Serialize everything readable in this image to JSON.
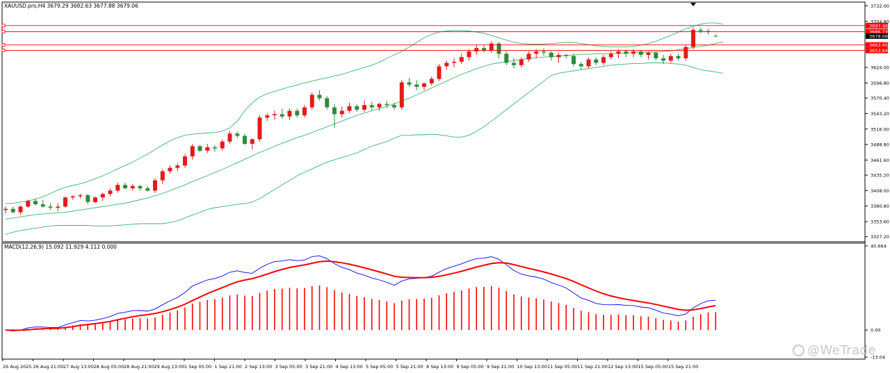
{
  "header": {
    "symbol_info": "XAUUSD.pro,H4  3679.29 3682.63 3677.88 3679.06"
  },
  "chart_data": [
    {
      "type": "candlestick",
      "title": "XAUUSD.pro,H4",
      "ohlc_readout": "3679.29 3682.63 3677.88 3679.06",
      "ylim": [
        3322,
        3735
      ],
      "price_ticks": [
        "3732.00",
        "3704.80",
        "3624.00",
        "3596.80",
        "3570.40",
        "3543.20",
        "3516.00",
        "3488.80",
        "3461.60",
        "3435.20",
        "3408.00",
        "3380.80",
        "3353.60",
        "3327.20"
      ],
      "time_labels": [
        "26 Aug 2025",
        "26 Aug 21:00",
        "27 Aug 13:00",
        "28 Aug 05:00",
        "28 Aug 21:00",
        "29 Aug 13:00",
        "1 Sep 05:00",
        "1 Sep 21:00",
        "2 Sep 13:00",
        "3 Sep 05:00",
        "3 Sep 21:00",
        "4 Sep 13:00",
        "5 Sep 05:00",
        "5 Sep 21:00",
        "8 Sep 13:00",
        "9 Sep 05:00",
        "9 Sep 21:00",
        "10 Sep 13:00",
        "11 Sep 05:00",
        "11 Sep 21:00",
        "12 Sep 13:00",
        "15 Sep 05:00",
        "15 Sep 21:00"
      ],
      "horizontal_levels": [
        {
          "label": "3697.46",
          "value": 3697.46,
          "color": "#ff0000",
          "style": "line"
        },
        {
          "label": "3686.73",
          "value": 3686.73,
          "color": "#ff0000",
          "style": "line"
        },
        {
          "label": "3679.06",
          "value": 3679.06,
          "color": "#000000",
          "style": "current"
        },
        {
          "label": "3663.45",
          "value": 3663.45,
          "color": "#ff0000",
          "style": "line"
        },
        {
          "label": "3653.84",
          "value": 3653.84,
          "color": "#ff0000",
          "style": "line"
        }
      ],
      "candles": [
        [
          3374,
          3380,
          3368,
          3376
        ],
        [
          3376,
          3380,
          3368,
          3370
        ],
        [
          3370,
          3382,
          3366,
          3380
        ],
        [
          3380,
          3392,
          3378,
          3390
        ],
        [
          3390,
          3394,
          3382,
          3384
        ],
        [
          3384,
          3392,
          3378,
          3380
        ],
        [
          3380,
          3386,
          3374,
          3378
        ],
        [
          3378,
          3386,
          3372,
          3380
        ],
        [
          3380,
          3398,
          3378,
          3396
        ],
        [
          3396,
          3400,
          3392,
          3398
        ],
        [
          3398,
          3402,
          3394,
          3400
        ],
        [
          3400,
          3402,
          3384,
          3388
        ],
        [
          3388,
          3398,
          3386,
          3396
        ],
        [
          3396,
          3404,
          3390,
          3402
        ],
        [
          3402,
          3412,
          3398,
          3408
        ],
        [
          3408,
          3422,
          3404,
          3418
        ],
        [
          3418,
          3422,
          3410,
          3412
        ],
        [
          3412,
          3420,
          3408,
          3416
        ],
        [
          3416,
          3418,
          3408,
          3412
        ],
        [
          3412,
          3416,
          3406,
          3408
        ],
        [
          3408,
          3430,
          3404,
          3426
        ],
        [
          3426,
          3446,
          3420,
          3442
        ],
        [
          3442,
          3452,
          3438,
          3448
        ],
        [
          3448,
          3456,
          3442,
          3452
        ],
        [
          3452,
          3472,
          3448,
          3468
        ],
        [
          3468,
          3490,
          3462,
          3486
        ],
        [
          3486,
          3488,
          3476,
          3478
        ],
        [
          3478,
          3490,
          3474,
          3484
        ],
        [
          3484,
          3488,
          3476,
          3482
        ],
        [
          3482,
          3498,
          3478,
          3494
        ],
        [
          3494,
          3512,
          3490,
          3508
        ],
        [
          3508,
          3512,
          3500,
          3504
        ],
        [
          3504,
          3508,
          3488,
          3490
        ],
        [
          3490,
          3500,
          3480,
          3498
        ],
        [
          3498,
          3540,
          3494,
          3536
        ],
        [
          3536,
          3544,
          3530,
          3540
        ],
        [
          3540,
          3548,
          3532,
          3542
        ],
        [
          3542,
          3552,
          3534,
          3538
        ],
        [
          3538,
          3552,
          3532,
          3548
        ],
        [
          3548,
          3552,
          3536,
          3540
        ],
        [
          3540,
          3558,
          3536,
          3554
        ],
        [
          3554,
          3580,
          3550,
          3576
        ],
        [
          3576,
          3584,
          3566,
          3570
        ],
        [
          3570,
          3574,
          3550,
          3554
        ],
        [
          3554,
          3560,
          3518,
          3542
        ],
        [
          3542,
          3556,
          3536,
          3548
        ],
        [
          3548,
          3562,
          3544,
          3556
        ],
        [
          3556,
          3560,
          3546,
          3550
        ],
        [
          3550,
          3566,
          3546,
          3558
        ],
        [
          3558,
          3564,
          3548,
          3554
        ],
        [
          3554,
          3562,
          3548,
          3560
        ],
        [
          3560,
          3566,
          3552,
          3558
        ],
        [
          3558,
          3562,
          3550,
          3554
        ],
        [
          3554,
          3602,
          3550,
          3598
        ],
        [
          3598,
          3606,
          3590,
          3594
        ],
        [
          3594,
          3602,
          3584,
          3590
        ],
        [
          3590,
          3598,
          3584,
          3596
        ],
        [
          3596,
          3608,
          3592,
          3604
        ],
        [
          3604,
          3630,
          3600,
          3626
        ],
        [
          3626,
          3636,
          3620,
          3632
        ],
        [
          3632,
          3640,
          3624,
          3634
        ],
        [
          3634,
          3648,
          3630,
          3642
        ],
        [
          3642,
          3656,
          3636,
          3652
        ],
        [
          3652,
          3664,
          3646,
          3658
        ],
        [
          3658,
          3664,
          3650,
          3654
        ],
        [
          3654,
          3670,
          3650,
          3666
        ],
        [
          3666,
          3668,
          3640,
          3648
        ],
        [
          3648,
          3652,
          3628,
          3632
        ],
        [
          3632,
          3640,
          3622,
          3628
        ],
        [
          3628,
          3642,
          3624,
          3638
        ],
        [
          3638,
          3652,
          3634,
          3648
        ],
        [
          3648,
          3656,
          3640,
          3652
        ],
        [
          3652,
          3658,
          3644,
          3650
        ],
        [
          3650,
          3652,
          3636,
          3642
        ],
        [
          3642,
          3650,
          3632,
          3646
        ],
        [
          3646,
          3648,
          3640,
          3644
        ],
        [
          3644,
          3648,
          3626,
          3630
        ],
        [
          3630,
          3634,
          3620,
          3626
        ],
        [
          3626,
          3642,
          3622,
          3638
        ],
        [
          3638,
          3642,
          3628,
          3632
        ],
        [
          3632,
          3646,
          3628,
          3642
        ],
        [
          3642,
          3652,
          3638,
          3648
        ],
        [
          3648,
          3656,
          3640,
          3652
        ],
        [
          3652,
          3656,
          3642,
          3648
        ],
        [
          3648,
          3656,
          3642,
          3652
        ],
        [
          3652,
          3654,
          3642,
          3646
        ],
        [
          3646,
          3652,
          3638,
          3650
        ],
        [
          3650,
          3652,
          3636,
          3640
        ],
        [
          3640,
          3646,
          3630,
          3636
        ],
        [
          3636,
          3648,
          3632,
          3644
        ],
        [
          3644,
          3648,
          3636,
          3640
        ],
        [
          3640,
          3664,
          3636,
          3660
        ],
        [
          3660,
          3694,
          3656,
          3690
        ],
        [
          3690,
          3694,
          3684,
          3688
        ],
        [
          3688,
          3692,
          3682,
          3686
        ],
        [
          3679.29,
          3682.63,
          3677.88,
          3679.06
        ]
      ],
      "bollinger": {
        "upper": [
          3385,
          3386,
          3388,
          3390,
          3393,
          3397,
          3403,
          3409,
          3414,
          3417,
          3420,
          3424,
          3429,
          3434,
          3440,
          3446,
          3452,
          3458,
          3465,
          3472,
          3480,
          3488,
          3495,
          3501,
          3505,
          3507,
          3508,
          3509,
          3510,
          3512,
          3518,
          3530,
          3548,
          3562,
          3572,
          3578,
          3582,
          3586,
          3590,
          3593,
          3597,
          3600,
          3603,
          3606,
          3609,
          3612,
          3616,
          3620,
          3624,
          3628,
          3633,
          3640,
          3646,
          3652,
          3660,
          3668,
          3676,
          3682,
          3686,
          3688,
          3689,
          3689,
          3688,
          3686,
          3684,
          3680,
          3676,
          3672,
          3668,
          3666,
          3665,
          3665,
          3665,
          3666,
          3667,
          3668,
          3668,
          3666,
          3664,
          3662,
          3661,
          3660,
          3660,
          3660,
          3661,
          3663,
          3666,
          3670,
          3675,
          3680,
          3686,
          3692,
          3696,
          3700,
          3702,
          3702,
          3700
        ],
        "middle": [
          3358,
          3360,
          3362,
          3364,
          3366,
          3367,
          3368,
          3369,
          3370,
          3372,
          3374,
          3376,
          3378,
          3380,
          3382,
          3384,
          3386,
          3389,
          3392,
          3395,
          3399,
          3403,
          3408,
          3413,
          3418,
          3424,
          3429,
          3434,
          3440,
          3445,
          3451,
          3457,
          3463,
          3469,
          3475,
          3480,
          3486,
          3491,
          3496,
          3501,
          3505,
          3510,
          3515,
          3520,
          3525,
          3530,
          3535,
          3540,
          3544,
          3548,
          3552,
          3556,
          3560,
          3565,
          3570,
          3576,
          3582,
          3588,
          3594,
          3600,
          3606,
          3612,
          3617,
          3622,
          3626,
          3630,
          3632,
          3634,
          3636,
          3638,
          3640,
          3641,
          3642,
          3643,
          3644,
          3645,
          3646,
          3647,
          3647,
          3648,
          3648,
          3648,
          3649,
          3649,
          3650,
          3650,
          3651,
          3651,
          3652,
          3653,
          3655,
          3657,
          3659,
          3661,
          3663,
          3666,
          3669
        ],
        "lower": [
          3331,
          3335,
          3338,
          3340,
          3342,
          3344,
          3346,
          3347,
          3347,
          3347,
          3347,
          3347,
          3346,
          3346,
          3346,
          3347,
          3348,
          3349,
          3350,
          3350,
          3350,
          3350,
          3352,
          3355,
          3360,
          3365,
          3370,
          3375,
          3378,
          3380,
          3382,
          3384,
          3385,
          3388,
          3394,
          3402,
          3410,
          3418,
          3426,
          3434,
          3440,
          3446,
          3452,
          3458,
          3462,
          3466,
          3470,
          3474,
          3480,
          3486,
          3490,
          3494,
          3500,
          3505,
          3505,
          3506,
          3506,
          3507,
          3506,
          3504,
          3502,
          3502,
          3505,
          3512,
          3520,
          3530,
          3540,
          3550,
          3560,
          3570,
          3580,
          3590,
          3600,
          3610,
          3614,
          3616,
          3618,
          3620,
          3622,
          3624,
          3626,
          3628,
          3629,
          3630,
          3631,
          3631,
          3632,
          3632,
          3632,
          3631,
          3630,
          3628,
          3624,
          3620,
          3618,
          3616,
          3614
        ]
      }
    },
    {
      "type": "macd",
      "title": "MACD(12,26,9)",
      "params_readout": "MACD(12,26,9) 15.092 11.929 4.112 0.000",
      "ylim": [
        -13.04,
        40.664
      ],
      "tick_labels": [
        "40.664",
        "0.00",
        "-13.04"
      ],
      "main_line_color": "#0000ff",
      "signal_line_color": "#ff0000",
      "histogram_color_up": "#ff0000",
      "histogram_color_down": "#008000"
    }
  ],
  "watermark": {
    "text": "@WeTrade"
  }
}
